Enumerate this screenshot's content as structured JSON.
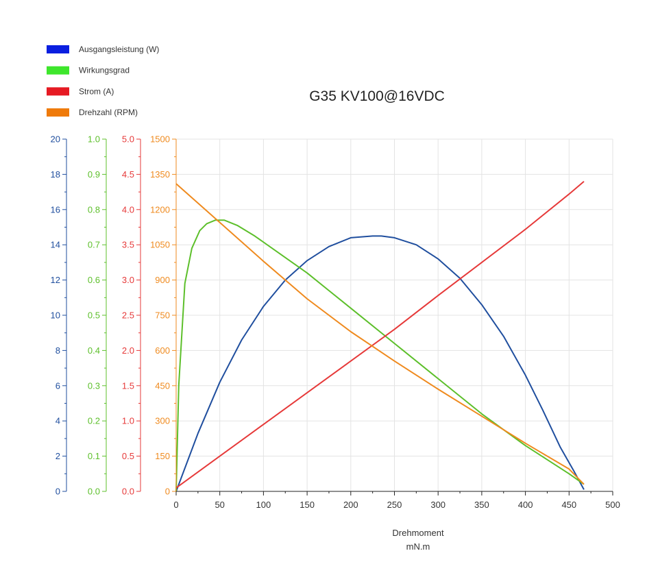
{
  "chart_data": {
    "type": "line",
    "title": "G35 KV100@16VDC",
    "xlabel": "Drehmoment",
    "xunit": "mN.m",
    "xlim": [
      0,
      500
    ],
    "xticks": [
      0,
      50,
      100,
      150,
      200,
      250,
      300,
      350,
      400,
      450,
      500
    ],
    "grid": true,
    "legend_position": "top-left",
    "axes": [
      {
        "id": "power",
        "color": "#1f4e9e",
        "ylim": [
          0,
          20
        ],
        "ticks": [
          0,
          2,
          4,
          6,
          8,
          10,
          12,
          14,
          16,
          18,
          20
        ],
        "decimals": 0
      },
      {
        "id": "eff",
        "color": "#5cbf2a",
        "ylim": [
          0,
          1.0
        ],
        "ticks": [
          0.0,
          0.1,
          0.2,
          0.3,
          0.4,
          0.5,
          0.6,
          0.7,
          0.8,
          0.9,
          1.0
        ],
        "decimals": 1
      },
      {
        "id": "current",
        "color": "#e63939",
        "ylim": [
          0,
          5.0
        ],
        "ticks": [
          0.0,
          0.5,
          1.0,
          1.5,
          2.0,
          2.5,
          3.0,
          3.5,
          4.0,
          4.5,
          5.0
        ],
        "decimals": 1
      },
      {
        "id": "speed",
        "color": "#ef8a1e",
        "ylim": [
          0,
          1500
        ],
        "ticks": [
          0,
          150,
          300,
          450,
          600,
          750,
          900,
          1050,
          1200,
          1350,
          1500
        ],
        "decimals": 0
      }
    ],
    "series": [
      {
        "name": "Ausgangsleistung (W)",
        "axis": "power",
        "color": "#1f4e9e",
        "legend_color": "#0a1fe0",
        "x": [
          0,
          25,
          50,
          75,
          100,
          125,
          150,
          175,
          200,
          225,
          235,
          250,
          275,
          300,
          325,
          350,
          375,
          400,
          420,
          440,
          455,
          467
        ],
        "y": [
          0,
          3.3,
          6.2,
          8.6,
          10.5,
          12.0,
          13.1,
          13.9,
          14.4,
          14.5,
          14.5,
          14.4,
          14.0,
          13.2,
          12.1,
          10.6,
          8.8,
          6.6,
          4.6,
          2.5,
          1.2,
          0.1
        ]
      },
      {
        "name": "Wirkungsgrad",
        "axis": "eff",
        "color": "#5cbf2a",
        "legend_color": "#3ee62c",
        "x": [
          0,
          3,
          10,
          18,
          27,
          35,
          45,
          55,
          70,
          90,
          110,
          130,
          150,
          175,
          200,
          250,
          300,
          350,
          400,
          450,
          467
        ],
        "y": [
          0,
          0.3,
          0.59,
          0.69,
          0.74,
          0.76,
          0.77,
          0.77,
          0.755,
          0.725,
          0.69,
          0.655,
          0.62,
          0.57,
          0.52,
          0.42,
          0.32,
          0.22,
          0.13,
          0.05,
          0.02
        ]
      },
      {
        "name": "Strom (A)",
        "axis": "current",
        "color": "#e63939",
        "legend_color": "#e61a23",
        "x": [
          0,
          50,
          100,
          150,
          200,
          250,
          300,
          350,
          400,
          450,
          467
        ],
        "y": [
          0.05,
          0.5,
          0.95,
          1.4,
          1.85,
          2.3,
          2.78,
          3.25,
          3.72,
          4.22,
          4.4
        ]
      },
      {
        "name": "Drehzahl (RPM)",
        "axis": "speed",
        "color": "#ef8a1e",
        "legend_color": "#ef7a0a",
        "x": [
          0,
          50,
          100,
          150,
          200,
          250,
          300,
          350,
          400,
          450,
          467
        ],
        "y": [
          1310,
          1145,
          980,
          820,
          680,
          555,
          435,
          320,
          205,
          95,
          30
        ]
      }
    ]
  }
}
